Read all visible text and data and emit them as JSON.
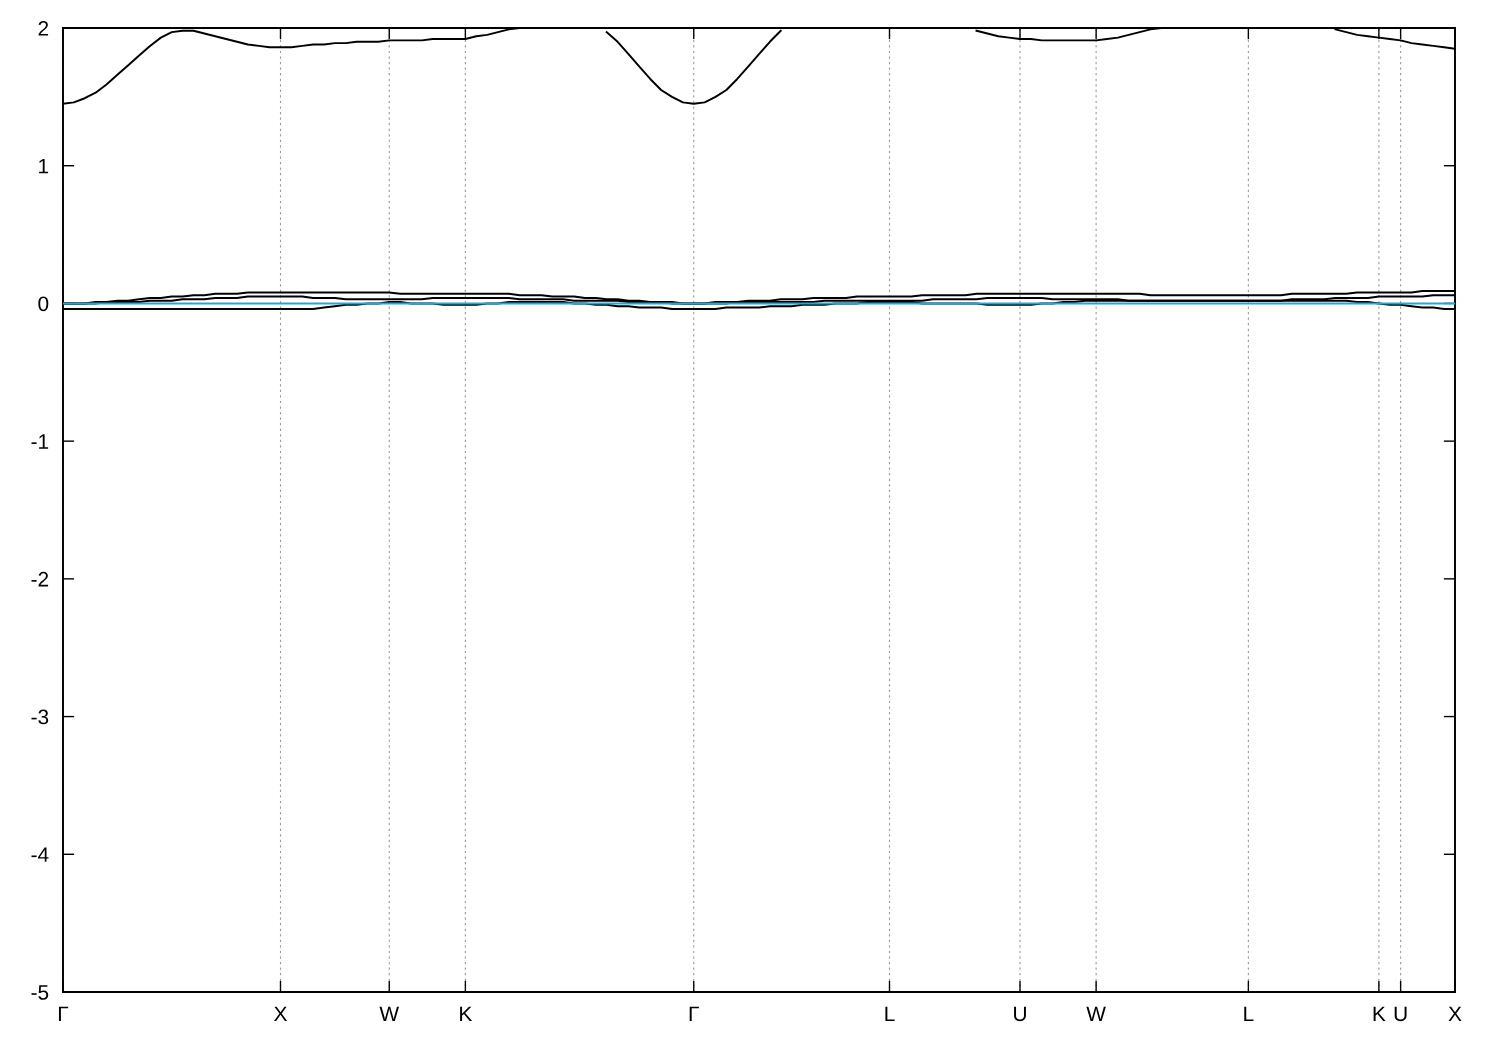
{
  "chart_data": {
    "type": "line",
    "categories": [
      "Γ",
      null,
      null,
      null,
      null,
      null,
      null,
      null,
      null,
      null,
      null,
      null,
      null,
      null,
      null,
      null,
      null,
      null,
      null,
      null,
      "X",
      null,
      null,
      null,
      null,
      null,
      null,
      null,
      null,
      null,
      "W",
      null,
      null,
      null,
      null,
      null,
      null,
      "K",
      null,
      null,
      null,
      null,
      null,
      null,
      null,
      null,
      null,
      null,
      null,
      null,
      null,
      null,
      null,
      null,
      null,
      null,
      null,
      null,
      "Γ",
      null,
      null,
      null,
      null,
      null,
      null,
      null,
      null,
      null,
      null,
      null,
      null,
      null,
      null,
      null,
      null,
      null,
      "L",
      null,
      null,
      null,
      null,
      null,
      null,
      null,
      null,
      null,
      null,
      null,
      "U",
      null,
      null,
      null,
      null,
      null,
      null,
      "W",
      null,
      null,
      null,
      null,
      null,
      null,
      null,
      null,
      null,
      null,
      null,
      null,
      null,
      "L",
      null,
      null,
      null,
      null,
      null,
      null,
      null,
      null,
      null,
      null,
      null,
      "K",
      null,
      "U",
      null,
      null,
      null,
      null,
      "X"
    ],
    "ylim": [
      -5,
      2
    ],
    "yticks": [
      -5,
      -4,
      -3,
      -2,
      -1,
      0,
      1,
      2
    ],
    "grid": "x",
    "marker": "none",
    "line_style": "solid",
    "ref_lines": [
      {
        "axis": "y",
        "value": 0,
        "color": "#29a3dc"
      }
    ],
    "series": [
      {
        "color": "#000000",
        "values": [
          1.45,
          1.46,
          1.49,
          1.53,
          1.59,
          1.66,
          1.73,
          1.8,
          1.87,
          1.93,
          1.97,
          1.98,
          1.98,
          1.96,
          1.94,
          1.92,
          1.9,
          1.88,
          1.87,
          1.86,
          1.86,
          1.86,
          1.87,
          1.88,
          1.88,
          1.89,
          1.89,
          1.9,
          1.9,
          1.9,
          1.91,
          1.91,
          1.91,
          1.91,
          1.92,
          1.92,
          1.92,
          1.92,
          1.94,
          1.95,
          1.97,
          1.99,
          2.0,
          null,
          null,
          null,
          null,
          null,
          null,
          null,
          1.97,
          1.9,
          1.81,
          1.72,
          1.63,
          1.55,
          1.5,
          1.46,
          1.45,
          1.46,
          1.5,
          1.55,
          1.63,
          1.72,
          1.81,
          1.9,
          1.98,
          null,
          null,
          null,
          null,
          null,
          null,
          null,
          null,
          null,
          null,
          null,
          null,
          null,
          null,
          null,
          null,
          null,
          1.98,
          1.96,
          1.94,
          1.93,
          1.92,
          1.92,
          1.91,
          1.91,
          1.91,
          1.91,
          1.91,
          1.91,
          1.92,
          1.93,
          1.95,
          1.97,
          1.99,
          2.0,
          null,
          null,
          null,
          null,
          null,
          null,
          null,
          null,
          null,
          null,
          null,
          null,
          null,
          null,
          null,
          1.99,
          1.97,
          1.95,
          1.94,
          1.93,
          1.92,
          1.91,
          1.89,
          1.88,
          1.87,
          1.86,
          1.85
        ]
      },
      {
        "color": "#000000",
        "values": [
          0,
          0,
          0,
          0.01,
          0.01,
          0.02,
          0.02,
          0.03,
          0.04,
          0.04,
          0.05,
          0.05,
          0.06,
          0.06,
          0.07,
          0.07,
          0.07,
          0.08,
          0.08,
          0.08,
          0.08,
          0.08,
          0.08,
          0.08,
          0.08,
          0.08,
          0.08,
          0.08,
          0.08,
          0.08,
          0.08,
          0.07,
          0.07,
          0.07,
          0.07,
          0.07,
          0.07,
          0.07,
          0.07,
          0.07,
          0.07,
          0.07,
          0.06,
          0.06,
          0.06,
          0.05,
          0.05,
          0.05,
          0.04,
          0.04,
          0.03,
          0.03,
          0.02,
          0.02,
          0.01,
          0.01,
          0.01,
          0,
          0,
          0,
          0.01,
          0.01,
          0.01,
          0.02,
          0.02,
          0.02,
          0.03,
          0.03,
          0.03,
          0.04,
          0.04,
          0.04,
          0.04,
          0.05,
          0.05,
          0.05,
          0.05,
          0.05,
          0.05,
          0.06,
          0.06,
          0.06,
          0.06,
          0.06,
          0.07,
          0.07,
          0.07,
          0.07,
          0.07,
          0.07,
          0.07,
          0.07,
          0.07,
          0.07,
          0.07,
          0.07,
          0.07,
          0.07,
          0.07,
          0.07,
          0.06,
          0.06,
          0.06,
          0.06,
          0.06,
          0.06,
          0.06,
          0.06,
          0.06,
          0.06,
          0.06,
          0.06,
          0.06,
          0.07,
          0.07,
          0.07,
          0.07,
          0.07,
          0.07,
          0.08,
          0.08,
          0.08,
          0.08,
          0.08,
          0.08,
          0.09,
          0.09,
          0.09,
          0.09
        ]
      },
      {
        "color": "#000000",
        "values": [
          0,
          0,
          0,
          0,
          0.01,
          0.01,
          0.01,
          0.01,
          0.02,
          0.02,
          0.02,
          0.03,
          0.03,
          0.03,
          0.04,
          0.04,
          0.04,
          0.05,
          0.05,
          0.05,
          0.05,
          0.05,
          0.05,
          0.04,
          0.04,
          0.04,
          0.03,
          0.03,
          0.03,
          0.03,
          0.03,
          0.03,
          0.03,
          0.03,
          0.04,
          0.04,
          0.04,
          0.04,
          0.04,
          0.04,
          0.04,
          0.04,
          0.03,
          0.03,
          0.03,
          0.03,
          0.03,
          0.02,
          0.02,
          0.02,
          0.02,
          0.02,
          0.01,
          0.01,
          0.01,
          0.01,
          0,
          0,
          0,
          0,
          0,
          0,
          0.01,
          0.01,
          0.01,
          0.01,
          0.01,
          0.01,
          0.01,
          0.01,
          0.02,
          0.02,
          0.02,
          0.02,
          0.02,
          0.02,
          0.02,
          0.02,
          0.02,
          0.02,
          0.03,
          0.03,
          0.03,
          0.03,
          0.03,
          0.04,
          0.04,
          0.04,
          0.04,
          0.04,
          0.04,
          0.03,
          0.03,
          0.03,
          0.03,
          0.03,
          0.03,
          0.03,
          0.02,
          0.02,
          0.02,
          0.02,
          0.02,
          0.02,
          0.02,
          0.02,
          0.02,
          0.02,
          0.02,
          0.02,
          0.02,
          0.02,
          0.02,
          0.03,
          0.03,
          0.03,
          0.03,
          0.04,
          0.04,
          0.04,
          0.04,
          0.05,
          0.05,
          0.05,
          0.05,
          0.05,
          0.06,
          0.06,
          0.06
        ]
      },
      {
        "color": "#000000",
        "values": [
          -0.04,
          -0.04,
          -0.04,
          -0.04,
          -0.04,
          -0.04,
          -0.04,
          -0.04,
          -0.04,
          -0.04,
          -0.04,
          -0.04,
          -0.04,
          -0.04,
          -0.04,
          -0.04,
          -0.04,
          -0.04,
          -0.04,
          -0.04,
          -0.04,
          -0.04,
          -0.04,
          -0.04,
          -0.03,
          -0.02,
          -0.01,
          -0.01,
          0,
          0,
          0.01,
          0.01,
          0,
          0,
          0,
          -0.01,
          -0.01,
          -0.01,
          -0.01,
          0,
          0,
          0.01,
          0.01,
          0.01,
          0.01,
          0.01,
          0.01,
          0,
          0,
          -0.01,
          -0.01,
          -0.02,
          -0.02,
          -0.03,
          -0.03,
          -0.03,
          -0.04,
          -0.04,
          -0.04,
          -0.04,
          -0.04,
          -0.03,
          -0.03,
          -0.03,
          -0.03,
          -0.02,
          -0.02,
          -0.02,
          -0.01,
          -0.01,
          -0.01,
          0,
          0,
          0,
          0.01,
          0.01,
          0.01,
          0.01,
          0.01,
          0,
          0,
          0,
          0,
          0,
          0,
          -0.01,
          -0.01,
          -0.01,
          -0.01,
          -0.01,
          0,
          0,
          0.01,
          0.01,
          0.02,
          0.02,
          0.02,
          0.02,
          0.02,
          0.02,
          0.02,
          0.02,
          0.02,
          0.02,
          0.02,
          0.02,
          0.02,
          0.02,
          0.02,
          0.02,
          0.02,
          0.02,
          0.02,
          0.02,
          0.02,
          0.02,
          0.02,
          0.02,
          0.02,
          0.01,
          0.01,
          0,
          -0.01,
          -0.01,
          -0.02,
          -0.03,
          -0.03,
          -0.04,
          -0.04
        ]
      }
    ]
  }
}
